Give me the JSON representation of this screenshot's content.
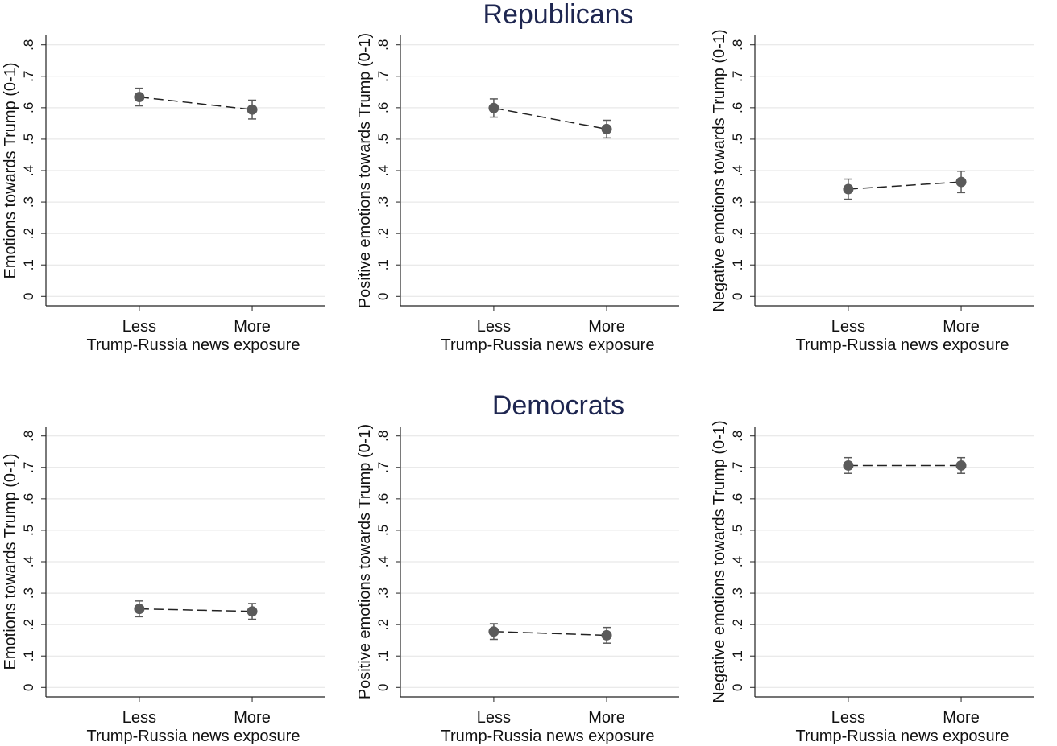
{
  "chart_data": [
    {
      "type": "errorbar",
      "ylabel": "Emotions towards Trump (0-1)",
      "xlabel": "Trump-Russia news exposure",
      "categories": [
        "Less",
        "More"
      ],
      "values": [
        0.634,
        0.594
      ],
      "errors": [
        0.028,
        0.03
      ],
      "color": "#5a5a5a",
      "ylim": [
        -0.03,
        0.83
      ],
      "yticks": [
        0,
        {
          "value": 0.1,
          "label": ".1"
        },
        {
          "value": 0.2,
          "label": ".2"
        },
        {
          "value": 0.3,
          "label": ".3"
        },
        {
          "value": 0.4,
          "label": ".4"
        },
        {
          "value": 0.5,
          "label": ".5"
        },
        {
          "value": 0.6,
          "label": ".6"
        },
        {
          "value": 0.7,
          "label": ".7"
        },
        {
          "value": 0.8,
          "label": ".8"
        }
      ],
      "grid": true
    },
    {
      "type": "errorbar",
      "title": "Republicans",
      "ylabel": "Positive emotions towards Trump (0-1)",
      "xlabel": "Trump-Russia news exposure",
      "categories": [
        "Less",
        "More"
      ],
      "values": [
        0.599,
        0.532
      ],
      "errors": [
        0.029,
        0.028
      ],
      "color": "#5a5a5a",
      "ylim": [
        -0.03,
        0.83
      ],
      "yticks": [
        0,
        {
          "value": 0.1,
          "label": ".1"
        },
        {
          "value": 0.2,
          "label": ".2"
        },
        {
          "value": 0.3,
          "label": ".3"
        },
        {
          "value": 0.4,
          "label": ".4"
        },
        {
          "value": 0.5,
          "label": ".5"
        },
        {
          "value": 0.6,
          "label": ".6"
        },
        {
          "value": 0.7,
          "label": ".7"
        },
        {
          "value": 0.8,
          "label": ".8"
        }
      ],
      "grid": true
    },
    {
      "type": "errorbar",
      "ylabel": "Negative emotions towards Trump (0-1)",
      "xlabel": "Trump-Russia news exposure",
      "categories": [
        "Less",
        "More"
      ],
      "values": [
        0.341,
        0.364
      ],
      "errors": [
        0.032,
        0.034
      ],
      "color": "#5a5a5a",
      "ylim": [
        -0.03,
        0.83
      ],
      "yticks": [
        0,
        {
          "value": 0.1,
          "label": ".1"
        },
        {
          "value": 0.2,
          "label": ".2"
        },
        {
          "value": 0.3,
          "label": ".3"
        },
        {
          "value": 0.4,
          "label": ".4"
        },
        {
          "value": 0.5,
          "label": ".5"
        },
        {
          "value": 0.6,
          "label": ".6"
        },
        {
          "value": 0.7,
          "label": ".7"
        },
        {
          "value": 0.8,
          "label": ".8"
        }
      ],
      "grid": true
    },
    {
      "type": "errorbar",
      "ylabel": "Emotions towards Trump (0-1)",
      "xlabel": "Trump-Russia news exposure",
      "categories": [
        "Less",
        "More"
      ],
      "values": [
        0.25,
        0.242
      ],
      "errors": [
        0.025,
        0.025
      ],
      "color": "#5a5a5a",
      "ylim": [
        -0.03,
        0.83
      ],
      "yticks": [
        0,
        {
          "value": 0.1,
          "label": ".1"
        },
        {
          "value": 0.2,
          "label": ".2"
        },
        {
          "value": 0.3,
          "label": ".3"
        },
        {
          "value": 0.4,
          "label": ".4"
        },
        {
          "value": 0.5,
          "label": ".5"
        },
        {
          "value": 0.6,
          "label": ".6"
        },
        {
          "value": 0.7,
          "label": ".7"
        },
        {
          "value": 0.8,
          "label": ".8"
        }
      ],
      "grid": true
    },
    {
      "type": "errorbar",
      "title": "Democrats",
      "ylabel": "Positive emotions towards Trump (0-1)",
      "xlabel": "Trump-Russia news exposure",
      "categories": [
        "Less",
        "More"
      ],
      "values": [
        0.178,
        0.166
      ],
      "errors": [
        0.025,
        0.025
      ],
      "color": "#5a5a5a",
      "ylim": [
        -0.03,
        0.83
      ],
      "yticks": [
        0,
        {
          "value": 0.1,
          "label": ".1"
        },
        {
          "value": 0.2,
          "label": ".2"
        },
        {
          "value": 0.3,
          "label": ".3"
        },
        {
          "value": 0.4,
          "label": ".4"
        },
        {
          "value": 0.5,
          "label": ".5"
        },
        {
          "value": 0.6,
          "label": ".6"
        },
        {
          "value": 0.7,
          "label": ".7"
        },
        {
          "value": 0.8,
          "label": ".8"
        }
      ],
      "grid": true
    },
    {
      "type": "errorbar",
      "ylabel": "Negative emotions towards Trump (0-1)",
      "xlabel": "Trump-Russia news exposure",
      "categories": [
        "Less",
        "More"
      ],
      "values": [
        0.706,
        0.706
      ],
      "errors": [
        0.025,
        0.025
      ],
      "color": "#5a5a5a",
      "ylim": [
        -0.03,
        0.83
      ],
      "yticks": [
        0,
        {
          "value": 0.1,
          "label": ".1"
        },
        {
          "value": 0.2,
          "label": ".2"
        },
        {
          "value": 0.3,
          "label": ".3"
        },
        {
          "value": 0.4,
          "label": ".4"
        },
        {
          "value": 0.5,
          "label": ".5"
        },
        {
          "value": 0.6,
          "label": ".6"
        },
        {
          "value": 0.7,
          "label": ".7"
        },
        {
          "value": 0.8,
          "label": ".8"
        }
      ],
      "grid": true
    }
  ]
}
